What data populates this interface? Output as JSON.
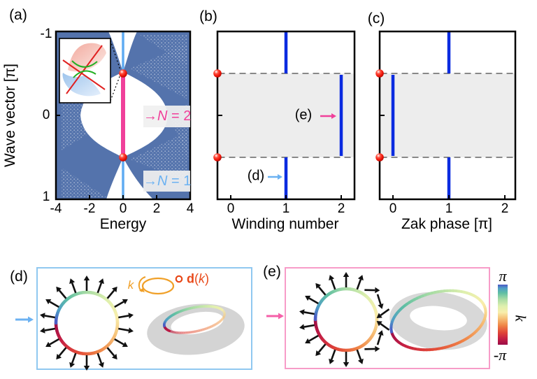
{
  "figure": {
    "panel_labels": {
      "a": "(a)",
      "b": "(b)",
      "c": "(c)",
      "d": "(d)",
      "e": "(e)"
    },
    "colors": {
      "bulk_blue": "#5473ac",
      "sky_blue": "#5fabf2",
      "sky_blue_text": "#6cb2f2",
      "pink": "#f0409a",
      "pink_arrow": "#f55fa8",
      "step_blue": "#0b2be0",
      "band_gray": "#ededed",
      "dash_gray": "#888888",
      "box_d_border": "#90c8f0",
      "box_e_border": "#f79cc8",
      "orange": "#f0a028",
      "red_orange": "#e84818",
      "arrow_black": "#111111",
      "mobius_gray": "#d6d6d6"
    },
    "panel_a": {
      "ann_n2": {
        "arrow": "→",
        "n": "N",
        "rest": " = 2"
      },
      "ann_n1": {
        "arrow": "→",
        "n": "N",
        "rest": " = 1"
      }
    },
    "panel_b": {
      "ref_d": "(d)",
      "ref_e": "(e)"
    },
    "panel_d": {
      "ann_k": "k",
      "d_bold": "d",
      "d_open": "(",
      "d_k": "k",
      "d_close": ")"
    }
  },
  "chart_data": [
    {
      "id": "a",
      "type": "band-structure",
      "xlabel": "Energy",
      "ylabel": "Wave vector [π]",
      "xlim": [
        -4,
        4
      ],
      "ylim": [
        -1,
        1
      ],
      "x_ticks": [
        "-4",
        "-2",
        "0",
        "2",
        "4"
      ],
      "y_ticks": [
        "-1",
        "0",
        "1"
      ],
      "dirac_points": [
        {
          "energy": 0,
          "wave_vector_pi": -0.5
        },
        {
          "energy": 0,
          "wave_vector_pi": 0.5
        }
      ],
      "edge_state_lines": [
        {
          "label": "N = 1",
          "winding": 1,
          "energy": 0,
          "k_range": [
            -1,
            1
          ],
          "color_key": "sky_blue",
          "width": 3.5
        },
        {
          "label": "N = 2",
          "winding": 2,
          "energy": 0,
          "k_range": [
            -0.5,
            0.5
          ],
          "color_key": "pink",
          "width": 6
        }
      ]
    },
    {
      "id": "b",
      "type": "step-line",
      "xlabel": "Winding number",
      "xlim": [
        -0.25,
        2.25
      ],
      "x_ticks": [
        "0",
        "1",
        "2"
      ],
      "segments": [
        {
          "value": 1,
          "k_range": [
            -1,
            -0.5
          ]
        },
        {
          "value": 2,
          "k_range": [
            -0.5,
            0.5
          ]
        },
        {
          "value": 1,
          "k_range": [
            0.5,
            1
          ]
        }
      ],
      "shaded_k_range": [
        -0.5,
        0.5
      ],
      "edge_dot_k": [
        -0.5,
        0.5
      ]
    },
    {
      "id": "c",
      "type": "step-line",
      "xlabel": "Zak phase [π]",
      "xlim": [
        -0.25,
        2.25
      ],
      "x_ticks": [
        "0",
        "1",
        "2"
      ],
      "segments": [
        {
          "value": 1,
          "k_range": [
            -1,
            -0.5
          ]
        },
        {
          "value": 0,
          "k_range": [
            -0.5,
            0.5
          ]
        },
        {
          "value": 1,
          "k_range": [
            0.5,
            1
          ]
        }
      ],
      "shaded_k_range": [
        -0.5,
        0.5
      ],
      "edge_dot_k": [
        -0.5,
        0.5
      ]
    },
    {
      "id": "d",
      "type": "vector-winding-circle",
      "winding_number": 1,
      "arrow_count": 18
    },
    {
      "id": "e",
      "type": "vector-winding-circle",
      "winding_number": 2,
      "arrow_count": 18
    },
    {
      "id": "colorbar",
      "type": "colorbar",
      "label": "k",
      "range_labels": [
        "-π",
        "π"
      ],
      "stops": [
        [
          0.0,
          "#9b0d47"
        ],
        [
          0.1,
          "#c41f44"
        ],
        [
          0.2,
          "#e04438"
        ],
        [
          0.32,
          "#ef8446"
        ],
        [
          0.44,
          "#f6c178"
        ],
        [
          0.54,
          "#f8eeac"
        ],
        [
          0.64,
          "#dff0ae"
        ],
        [
          0.76,
          "#a6dba4"
        ],
        [
          0.86,
          "#5fbfa3"
        ],
        [
          0.94,
          "#4f9ec6"
        ],
        [
          1.0,
          "#4a57c4"
        ]
      ]
    }
  ]
}
